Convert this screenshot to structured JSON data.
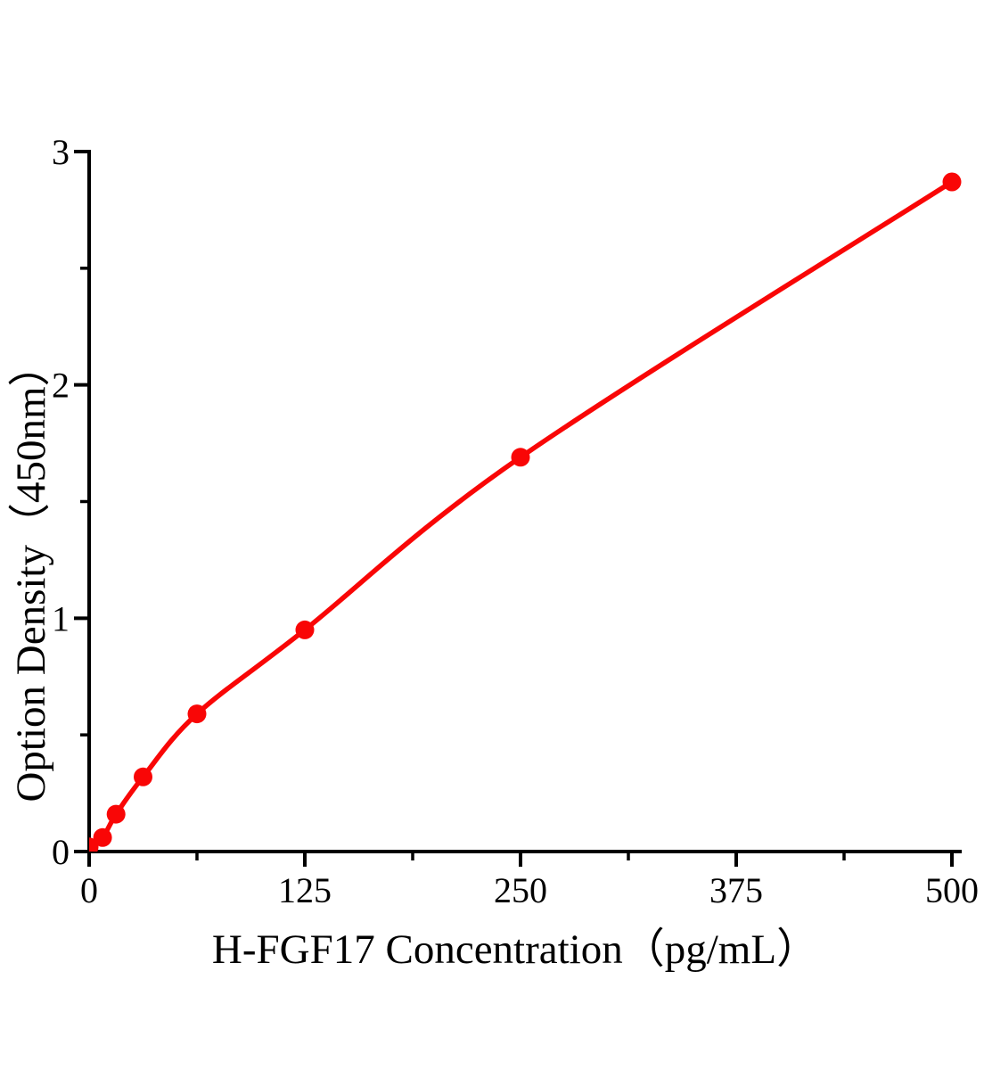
{
  "figure": {
    "background": "#ffffff"
  },
  "chart_data": {
    "type": "line",
    "title": "",
    "xlabel": "H-FGF17 Concentration（pg/mL）",
    "ylabel": "Option Density（450nm）",
    "x": [
      0,
      7.8,
      15.6,
      31.25,
      62.5,
      125,
      250,
      500
    ],
    "y": [
      0.02,
      0.06,
      0.16,
      0.32,
      0.59,
      0.95,
      1.69,
      2.87
    ],
    "xlim": [
      0,
      500
    ],
    "ylim": [
      0,
      3
    ],
    "x_major_ticks": [
      0,
      125,
      250,
      375,
      500
    ],
    "x_major_tick_labels": [
      "0",
      "125",
      "250",
      "375",
      "500"
    ],
    "x_minor_ticks": [
      62.5,
      187.5,
      312.5,
      437.5
    ],
    "y_major_ticks": [
      0,
      1,
      2,
      3
    ],
    "y_major_tick_labels": [
      "0",
      "1",
      "2",
      "3"
    ],
    "y_minor_ticks": [
      0.5,
      1.5,
      2.5
    ],
    "grid": false,
    "legend": "none",
    "marker": "circle",
    "line_color": "#f90606",
    "marker_color": "#f90606",
    "axis_color": "#000000",
    "text_color": "#000000",
    "background": "#ffffff"
  }
}
